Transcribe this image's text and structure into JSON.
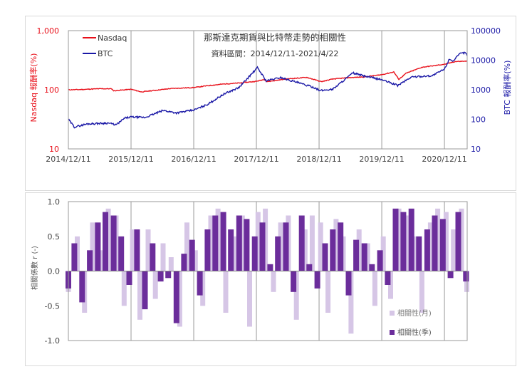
{
  "chart_data": [
    {
      "type": "line",
      "title": "那斯達克期貨與比特幣走勢的相關性",
      "subtitle": "資料區間：2014/12/11-2021/4/22",
      "ylabel_left": "Nasdaq 報酬率(%)",
      "ylabel_right": "BTC 報酬率(%)",
      "x_ticks": [
        "2014/12/11",
        "2015/12/11",
        "2016/12/11",
        "2017/12/11",
        "2018/12/11",
        "2019/12/11",
        "2020/12/11"
      ],
      "y_left_ticks": [
        "1,000",
        "100",
        "10"
      ],
      "y_right_ticks": [
        "100000",
        "10000",
        "1000",
        "100",
        "10"
      ],
      "y_left_scale": "log",
      "y_right_scale": "log",
      "y_left_lim": [
        10,
        1000
      ],
      "y_right_lim": [
        10,
        100000
      ],
      "grid": "vertical",
      "legend_position": "top-left",
      "series": [
        {
          "name": "Nasdaq",
          "axis": "left",
          "color": "#e8101a",
          "points": [
            [
              "2014-12-11",
              100
            ],
            [
              "2015-03-01",
              101
            ],
            [
              "2015-06-01",
              104
            ],
            [
              "2015-08-20",
              104
            ],
            [
              "2015-09-01",
              96
            ],
            [
              "2015-12-11",
              102
            ],
            [
              "2016-02-10",
              92
            ],
            [
              "2016-05-01",
              98
            ],
            [
              "2016-08-01",
              105
            ],
            [
              "2016-12-11",
              109
            ],
            [
              "2017-03-01",
              117
            ],
            [
              "2017-06-01",
              125
            ],
            [
              "2017-09-01",
              130
            ],
            [
              "2017-12-11",
              139
            ],
            [
              "2018-01-26",
              150
            ],
            [
              "2018-02-09",
              137
            ],
            [
              "2018-06-01",
              152
            ],
            [
              "2018-10-01",
              162
            ],
            [
              "2018-12-24",
              137
            ],
            [
              "2019-03-01",
              152
            ],
            [
              "2019-06-01",
              160
            ],
            [
              "2019-09-01",
              165
            ],
            [
              "2019-12-11",
              180
            ],
            [
              "2020-02-19",
              200
            ],
            [
              "2020-03-20",
              150
            ],
            [
              "2020-05-01",
              190
            ],
            [
              "2020-08-01",
              240
            ],
            [
              "2020-12-11",
              270
            ],
            [
              "2021-02-12",
              300
            ],
            [
              "2021-04-22",
              305
            ]
          ]
        },
        {
          "name": "BTC",
          "axis": "right",
          "color": "#1a18a6",
          "points": [
            [
              "2014-12-11",
              100
            ],
            [
              "2015-01-15",
              55
            ],
            [
              "2015-04-01",
              70
            ],
            [
              "2015-08-01",
              75
            ],
            [
              "2015-09-15",
              65
            ],
            [
              "2015-11-05",
              110
            ],
            [
              "2015-12-11",
              120
            ],
            [
              "2016-03-01",
              115
            ],
            [
              "2016-06-16",
              200
            ],
            [
              "2016-09-01",
              165
            ],
            [
              "2016-12-11",
              205
            ],
            [
              "2017-03-01",
              320
            ],
            [
              "2017-06-01",
              700
            ],
            [
              "2017-09-01",
              1200
            ],
            [
              "2017-12-17",
              5600
            ],
            [
              "2018-02-06",
              2000
            ],
            [
              "2018-05-01",
              2600
            ],
            [
              "2018-08-01",
              1800
            ],
            [
              "2018-11-20",
              1150
            ],
            [
              "2018-12-15",
              930
            ],
            [
              "2019-03-01",
              1050
            ],
            [
              "2019-06-26",
              3700
            ],
            [
              "2019-09-01",
              2900
            ],
            [
              "2019-12-11",
              2200
            ],
            [
              "2020-03-13",
              1400
            ],
            [
              "2020-06-01",
              2700
            ],
            [
              "2020-10-01",
              3000
            ],
            [
              "2020-12-11",
              5000
            ],
            [
              "2021-01-08",
              11000
            ],
            [
              "2021-02-01",
              9500
            ],
            [
              "2021-03-13",
              17000
            ],
            [
              "2021-04-14",
              18000
            ],
            [
              "2021-04-22",
              14000
            ]
          ]
        }
      ]
    },
    {
      "type": "bar",
      "ylabel": "相關係數 r (-)",
      "ylim": [
        -1.0,
        1.0
      ],
      "y_ticks": [
        "1.0",
        "0.5",
        "0.0",
        "-0.5",
        "-1.0"
      ],
      "grid": "vertical",
      "legend_position": "bottom-right",
      "monthly_color": "#d6c6e6",
      "quarterly_color": "#6b2d9b",
      "series": [
        {
          "name": "相關性(月)",
          "x": [
            "2014-12-11",
            "2015-02-01",
            "2015-03-15",
            "2015-05-01",
            "2015-06-20",
            "2015-08-01",
            "2015-09-15",
            "2015-11-01",
            "2015-12-20",
            "2016-02-01",
            "2016-03-20",
            "2016-05-01",
            "2016-06-15",
            "2016-08-01",
            "2016-09-20",
            "2016-11-01",
            "2016-12-20",
            "2017-02-01",
            "2017-03-20",
            "2017-05-01",
            "2017-06-15",
            "2017-08-01",
            "2017-09-20",
            "2017-11-01",
            "2017-12-20",
            "2018-02-01",
            "2018-03-20",
            "2018-05-01",
            "2018-06-15",
            "2018-08-01",
            "2018-09-20",
            "2018-11-01",
            "2018-12-20",
            "2019-02-01",
            "2019-03-20",
            "2019-05-01",
            "2019-06-15",
            "2019-08-01",
            "2019-09-20",
            "2019-11-01",
            "2019-12-20",
            "2020-02-01",
            "2020-03-20",
            "2020-05-01",
            "2020-06-15",
            "2020-08-01",
            "2020-09-20",
            "2020-11-01",
            "2020-12-20",
            "2021-02-01",
            "2021-03-20",
            "2021-04-20"
          ],
          "values": [
            -0.3,
            0.5,
            -0.6,
            0.7,
            0.3,
            0.9,
            0.8,
            -0.5,
            0.6,
            -0.7,
            0.6,
            -0.4,
            0.4,
            0.2,
            -0.8,
            0.7,
            0.3,
            -0.5,
            0.8,
            0.9,
            -0.6,
            0.5,
            0.8,
            -0.8,
            0.85,
            0.9,
            -0.3,
            0.7,
            0.8,
            -0.7,
            0.6,
            0.8,
            0.7,
            -0.6,
            0.75,
            0.5,
            -0.9,
            0.6,
            0.4,
            -0.5,
            0.5,
            -0.4,
            0.9,
            0.8,
            0.5,
            -0.6,
            0.7,
            0.9,
            0.85,
            0.6,
            0.9,
            -0.3
          ]
        },
        {
          "name": "相關性(季)",
          "x": [
            "2014-12-11",
            "2015-01-15",
            "2015-03-01",
            "2015-04-15",
            "2015-06-01",
            "2015-07-15",
            "2015-09-01",
            "2015-10-15",
            "2015-12-01",
            "2016-01-15",
            "2016-03-01",
            "2016-04-15",
            "2016-06-01",
            "2016-07-15",
            "2016-09-01",
            "2016-10-15",
            "2016-12-01",
            "2017-01-15",
            "2017-03-01",
            "2017-04-15",
            "2017-06-01",
            "2017-07-15",
            "2017-09-01",
            "2017-10-15",
            "2017-12-01",
            "2018-01-15",
            "2018-03-01",
            "2018-04-15",
            "2018-06-01",
            "2018-07-15",
            "2018-09-01",
            "2018-10-15",
            "2018-12-01",
            "2019-01-15",
            "2019-03-01",
            "2019-04-15",
            "2019-06-01",
            "2019-07-15",
            "2019-09-01",
            "2019-10-15",
            "2019-12-01",
            "2020-01-15",
            "2020-03-01",
            "2020-04-15",
            "2020-06-01",
            "2020-07-15",
            "2020-09-01",
            "2020-10-15",
            "2020-12-01",
            "2021-01-15",
            "2021-03-01",
            "2021-04-15"
          ],
          "values": [
            -0.25,
            0.4,
            -0.45,
            0.3,
            0.7,
            0.85,
            0.8,
            0.5,
            -0.2,
            0.6,
            -0.55,
            0.4,
            -0.15,
            -0.1,
            -0.75,
            0.25,
            0.45,
            -0.35,
            0.6,
            0.8,
            0.85,
            0.6,
            0.8,
            0.75,
            0.5,
            0.7,
            0.1,
            0.5,
            0.7,
            -0.3,
            0.8,
            0.1,
            -0.25,
            0.4,
            0.6,
            0.7,
            -0.35,
            0.45,
            0.4,
            0.1,
            0.3,
            -0.2,
            0.9,
            0.85,
            0.9,
            0.5,
            0.6,
            0.8,
            0.75,
            -0.1,
            0.85,
            -0.15
          ]
        }
      ]
    }
  ]
}
